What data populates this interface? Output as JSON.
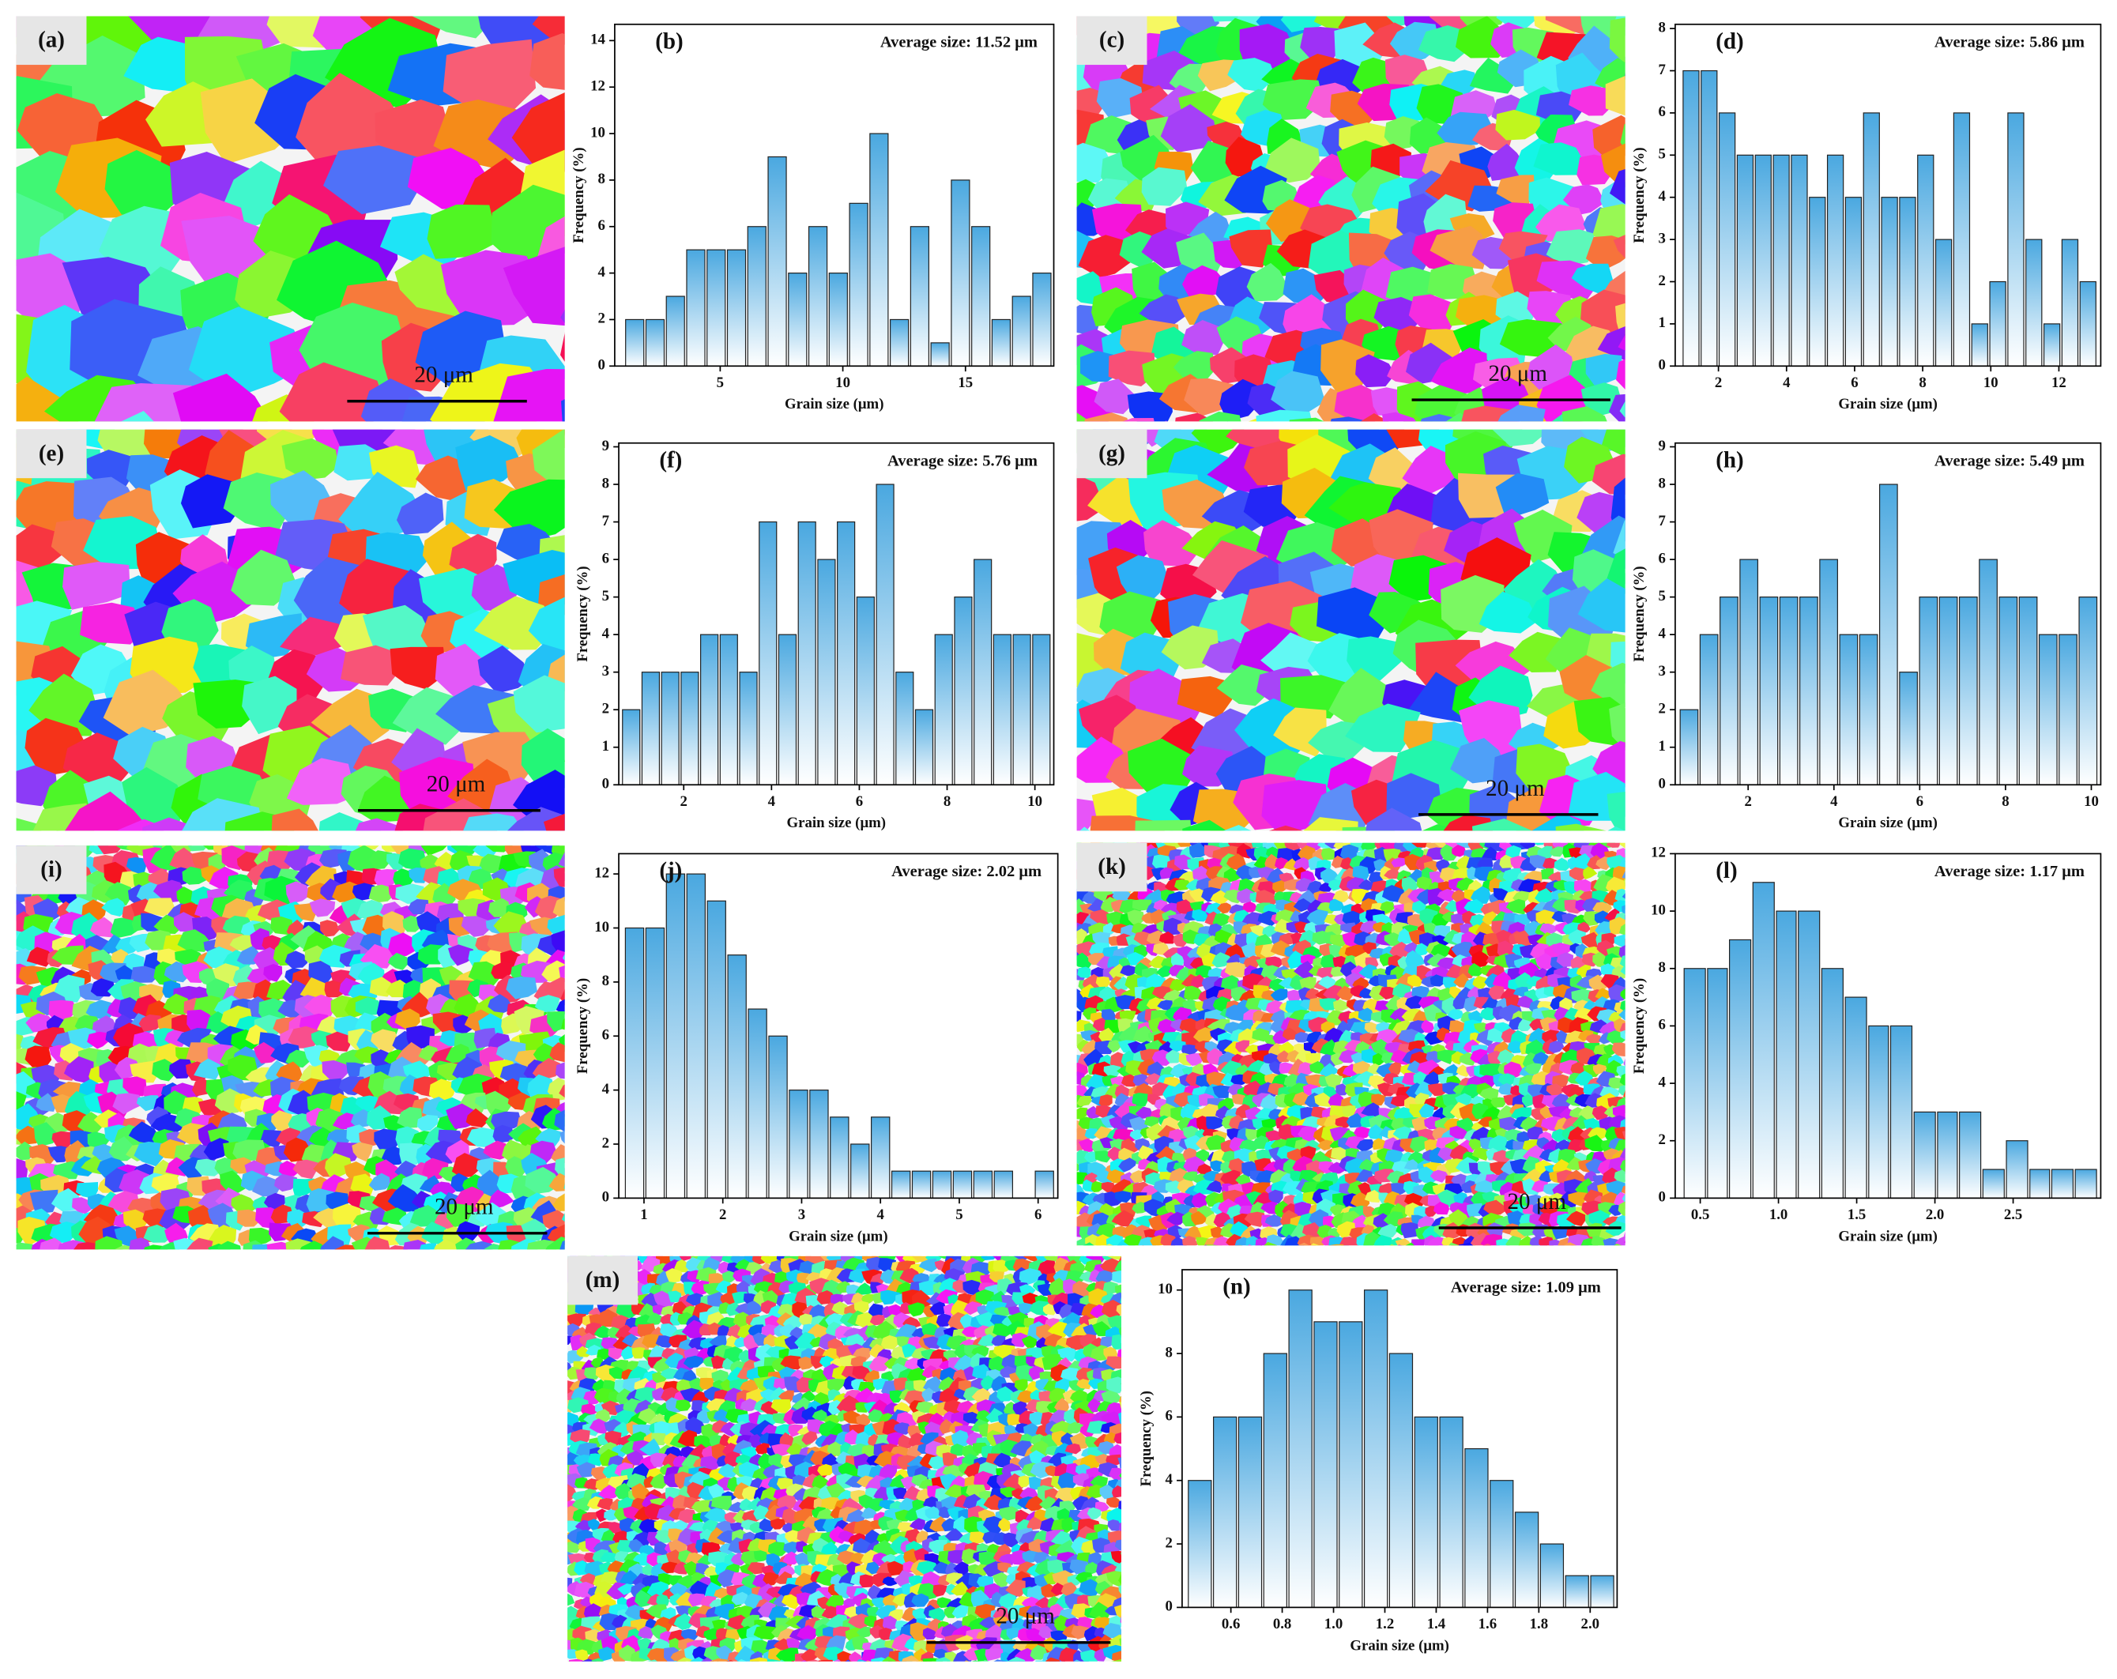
{
  "chart_data": [
    {
      "type": "histogram",
      "label": "(b)",
      "annotation": "Average size: 11.52 μm",
      "x_label": "Grain size (μm)",
      "y_label": "Frequency (%)",
      "color": "#4aa8e0",
      "bins": [
        1.1,
        1.93,
        2.76,
        3.59,
        4.42,
        5.25,
        6.08,
        6.91,
        7.74,
        8.57,
        9.4,
        10.23,
        11.06,
        11.89,
        12.72,
        13.55,
        14.38,
        15.21,
        16.04,
        16.87,
        17.7,
        18.53
      ],
      "values": [
        2,
        2,
        3,
        5,
        5,
        5,
        6,
        9,
        4,
        6,
        4,
        7,
        10,
        2,
        6,
        1,
        8,
        6,
        2,
        3,
        4
      ],
      "xlim": [
        0.7,
        18.6
      ],
      "ylim": [
        0,
        14.7
      ],
      "xticks": [
        5,
        10,
        15
      ],
      "yticks": [
        0,
        2,
        4,
        6,
        8,
        10,
        12,
        14
      ]
    },
    {
      "type": "histogram",
      "label": "(d)",
      "annotation": "Average size: 5.86 μm",
      "x_label": "Grain size (μm)",
      "y_label": "Frequency (%)",
      "color": "#4aa8e0",
      "bins": [
        0.93,
        1.46,
        1.99,
        2.52,
        3.05,
        3.58,
        4.11,
        4.64,
        5.17,
        5.7,
        6.23,
        6.76,
        7.29,
        7.82,
        8.35,
        8.88,
        9.41,
        9.94,
        10.47,
        11.0,
        11.53,
        12.06,
        12.59,
        13.12
      ],
      "values": [
        7,
        7,
        6,
        5,
        5,
        5,
        5,
        4,
        5,
        4,
        6,
        4,
        4,
        5,
        3,
        6,
        1,
        2,
        6,
        3,
        1,
        3,
        2
      ],
      "xlim": [
        0.73,
        13.23
      ],
      "ylim": [
        0,
        8.1
      ],
      "xticks": [
        2,
        4,
        6,
        8,
        10,
        12
      ],
      "yticks": [
        0,
        1,
        2,
        3,
        4,
        5,
        6,
        7,
        8
      ]
    },
    {
      "type": "histogram",
      "label": "(f)",
      "annotation": "Average size: 5.76 μm",
      "x_label": "Grain size (μm)",
      "y_label": "Frequency (%)",
      "color": "#4aa8e0",
      "bins": [
        0.58,
        1.025,
        1.47,
        1.915,
        2.36,
        2.805,
        3.25,
        3.695,
        4.14,
        4.585,
        5.03,
        5.475,
        5.92,
        6.365,
        6.81,
        7.255,
        7.7,
        8.145,
        8.59,
        9.035,
        9.48,
        9.925,
        10.37
      ],
      "values": [
        2,
        3,
        3,
        3,
        4,
        4,
        3,
        7,
        4,
        7,
        6,
        7,
        5,
        8,
        3,
        2,
        4,
        5,
        6,
        4,
        4,
        4
      ],
      "xlim": [
        0.52,
        10.43
      ],
      "ylim": [
        0,
        9.1
      ],
      "xticks": [
        2,
        4,
        6,
        8,
        10
      ],
      "yticks": [
        0,
        1,
        2,
        3,
        4,
        5,
        6,
        7,
        8,
        9
      ]
    },
    {
      "type": "histogram",
      "label": "(h)",
      "annotation": "Average size: 5.49 μm",
      "x_label": "Grain size (μm)",
      "y_label": "Frequency (%)",
      "color": "#4aa8e0",
      "bins": [
        0.39,
        0.855,
        1.32,
        1.785,
        2.25,
        2.715,
        3.18,
        3.645,
        4.11,
        4.575,
        5.04,
        5.505,
        5.97,
        6.435,
        6.9,
        7.365,
        7.83,
        8.295,
        8.76,
        9.225,
        9.69,
        10.155
      ],
      "values": [
        2,
        4,
        5,
        6,
        5,
        5,
        5,
        6,
        4,
        4,
        8,
        3,
        5,
        5,
        5,
        6,
        5,
        5,
        4,
        4,
        5
      ],
      "xlim": [
        0.3,
        10.22
      ],
      "ylim": [
        0,
        9.1
      ],
      "xticks": [
        2,
        4,
        6,
        8,
        10
      ],
      "yticks": [
        0,
        1,
        2,
        3,
        4,
        5,
        6,
        7,
        8,
        9
      ]
    },
    {
      "type": "histogram",
      "label": "(j)",
      "annotation": "Average size: 2.02 μm",
      "x_label": "Grain size (μm)",
      "y_label": "Frequency (%)",
      "color": "#4aa8e0",
      "bins": [
        0.75,
        1.01,
        1.27,
        1.53,
        1.79,
        2.05,
        2.31,
        2.57,
        2.83,
        3.09,
        3.35,
        3.61,
        3.87,
        4.13,
        4.39,
        4.65,
        4.91,
        5.17,
        5.43,
        5.69,
        5.95,
        6.21
      ],
      "values": [
        10,
        10,
        12,
        12,
        11,
        9,
        7,
        6,
        4,
        4,
        3,
        2,
        3,
        1,
        1,
        1,
        1,
        1,
        1,
        0,
        1
      ],
      "xlim": [
        0.68,
        6.25
      ],
      "ylim": [
        0,
        12.75
      ],
      "xticks": [
        1,
        2,
        3,
        4,
        5,
        6
      ],
      "yticks": [
        0,
        2,
        4,
        6,
        8,
        10,
        12
      ]
    },
    {
      "type": "histogram",
      "label": "(l)",
      "annotation": "Average size: 1.17 μm",
      "x_label": "Grain size (μm)",
      "y_label": "Frequency (%)",
      "color": "#4aa8e0",
      "bins": [
        0.39,
        0.54,
        0.68,
        0.83,
        0.98,
        1.12,
        1.27,
        1.42,
        1.57,
        1.71,
        1.86,
        2.01,
        2.15,
        2.3,
        2.45,
        2.6,
        2.74,
        2.89,
        3.04
      ],
      "values": [
        8,
        8,
        9,
        11,
        10,
        10,
        8,
        7,
        6,
        6,
        3,
        3,
        3,
        1,
        2,
        1,
        1,
        1
      ],
      "xlim": [
        0.34,
        3.06
      ],
      "ylim": [
        0,
        12
      ],
      "xticks": [
        0.5,
        {
          "value": 1,
          "label": "1.0"
        },
        1.5,
        {
          "value": 2,
          "label": "2.0"
        },
        2.5
      ],
      "yticks": [
        0,
        2,
        4,
        6,
        8,
        10,
        12
      ]
    },
    {
      "type": "histogram",
      "label": "(n)",
      "annotation": "Average size: 1.09 μm",
      "x_label": "Grain size (μm)",
      "y_label": "Frequency (%)",
      "color": "#4aa8e0",
      "bins": [
        0.43,
        0.528,
        0.626,
        0.724,
        0.822,
        0.92,
        1.018,
        1.116,
        1.214,
        1.312,
        1.41,
        1.508,
        1.606,
        1.704,
        1.802,
        1.9,
        1.998,
        2.096
      ],
      "values": [
        4,
        6,
        6,
        8,
        10,
        9,
        9,
        10,
        8,
        6,
        6,
        5,
        4,
        3,
        2,
        1,
        1
      ],
      "xlim": [
        0.41,
        2.105
      ],
      "ylim": [
        0,
        10.64
      ],
      "xticks": [
        0.6,
        0.8,
        {
          "value": 1,
          "label": "1.0"
        },
        1.2,
        1.4,
        1.6,
        1.8,
        {
          "value": 2,
          "label": "2.0"
        }
      ],
      "yticks": [
        0,
        2,
        4,
        6,
        8,
        10
      ]
    }
  ],
  "maps": [
    {
      "label": "(a)",
      "scale_bar": "20 μm"
    },
    {
      "label": "(c)",
      "scale_bar": "20 μm"
    },
    {
      "label": "(e)",
      "scale_bar": "20 μm"
    },
    {
      "label": "(g)",
      "scale_bar": "20 μm"
    },
    {
      "label": "(i)",
      "scale_bar": "20 μm"
    },
    {
      "label": "(k)",
      "scale_bar": "20 μm"
    },
    {
      "label": "(m)",
      "scale_bar": "20 μm"
    }
  ]
}
